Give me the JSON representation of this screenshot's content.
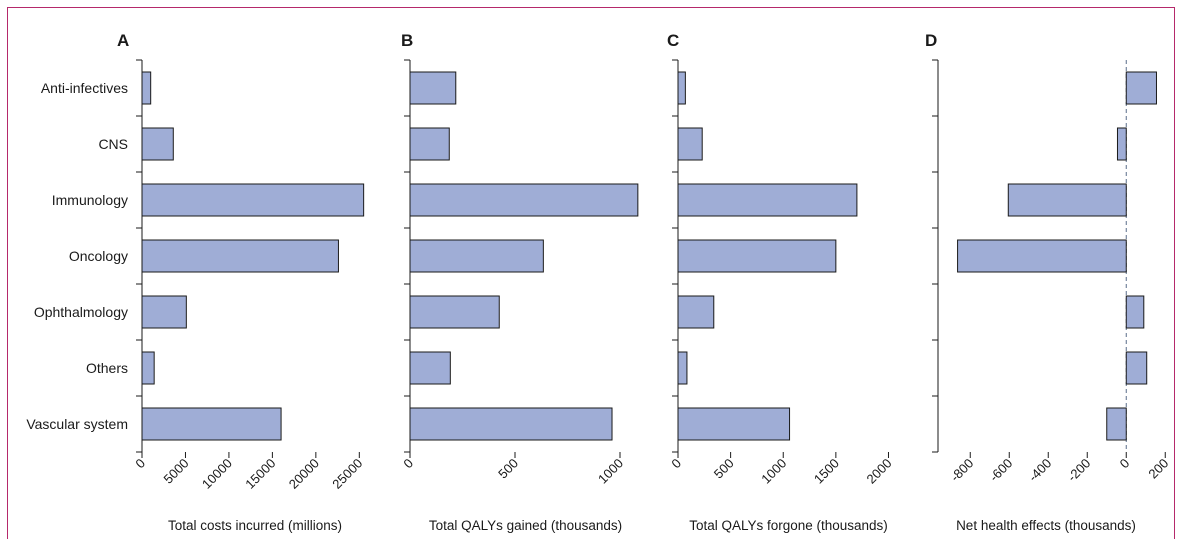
{
  "colors": {
    "bar_fill": "#9fadd6",
    "bar_stroke": "#1a1a1a",
    "axis": "#1a1a1a",
    "frame": "#b5296b",
    "zero_line": "#5a6f8a"
  },
  "categories": [
    "Anti-infectives",
    "CNS",
    "Immunology",
    "Oncology",
    "Ophthalmology",
    "Others",
    "Vascular system"
  ],
  "chart_data": [
    {
      "type": "bar",
      "orientation": "horizontal",
      "panel": "A",
      "categories": [
        "Anti-infectives",
        "CNS",
        "Immunology",
        "Oncology",
        "Ophthalmology",
        "Others",
        "Vascular system"
      ],
      "values": [
        1000,
        3600,
        25500,
        22600,
        5100,
        1400,
        16000
      ],
      "xlabel": "Total costs incurred (millions)",
      "xlim": [
        0,
        26000
      ],
      "ticks": [
        0,
        5000,
        10000,
        15000,
        20000,
        25000
      ],
      "tick_labels": [
        "0",
        "5000",
        "10000",
        "15000",
        "20000",
        "25000"
      ]
    },
    {
      "type": "bar",
      "orientation": "horizontal",
      "panel": "B",
      "categories": [
        "Anti-infectives",
        "CNS",
        "Immunology",
        "Oncology",
        "Ophthalmology",
        "Others",
        "Vascular system"
      ],
      "values": [
        218,
        187,
        1085,
        635,
        425,
        192,
        962
      ],
      "xlabel": "Total QALYs gained (thousands)",
      "xlim": [
        0,
        1100
      ],
      "ticks": [
        0,
        500,
        1000
      ],
      "tick_labels": [
        "0",
        "500",
        "1000"
      ]
    },
    {
      "type": "bar",
      "orientation": "horizontal",
      "panel": "C",
      "categories": [
        "Anti-infectives",
        "CNS",
        "Immunology",
        "Oncology",
        "Ophthalmology",
        "Others",
        "Vascular system"
      ],
      "values": [
        70,
        230,
        1700,
        1500,
        340,
        85,
        1060
      ],
      "xlabel": "Total QALYs forgone (thousands)",
      "xlim": [
        0,
        2100
      ],
      "ticks": [
        0,
        500,
        1000,
        1500,
        2000
      ],
      "tick_labels": [
        "0",
        "500",
        "1000",
        "1500",
        "2000"
      ]
    },
    {
      "type": "bar",
      "orientation": "horizontal",
      "panel": "D",
      "categories": [
        "Anti-infectives",
        "CNS",
        "Immunology",
        "Oncology",
        "Ophthalmology",
        "Others",
        "Vascular system"
      ],
      "values": [
        155,
        -45,
        -605,
        -865,
        90,
        105,
        -100
      ],
      "xlabel": "Net health effects (thousands)",
      "xlim": [
        -950,
        250
      ],
      "ticks": [
        -800,
        -600,
        -400,
        -200,
        0,
        200
      ],
      "tick_labels": [
        "-800",
        "-600",
        "-400",
        "-200",
        "0",
        "200"
      ]
    }
  ]
}
